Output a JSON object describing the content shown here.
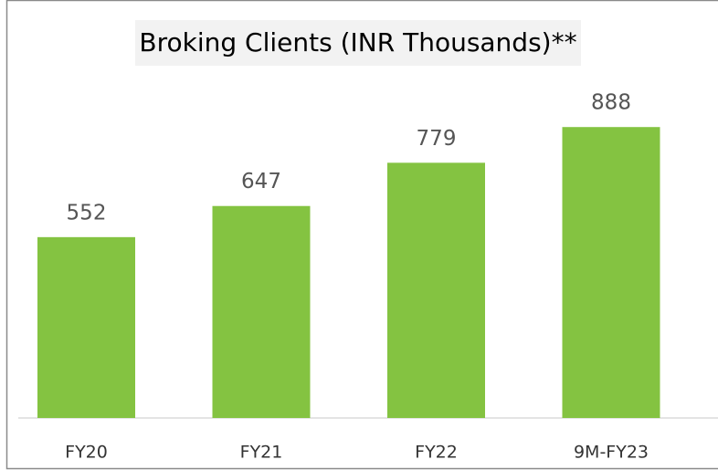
{
  "chart_data": {
    "type": "bar",
    "title": "Broking Clients (INR Thousands)**",
    "categories": [
      "FY20",
      "FY21",
      "FY22",
      "9M-FY23"
    ],
    "values": [
      552,
      647,
      779,
      888
    ],
    "color": "#84c341",
    "ylim": [
      0,
      1000
    ]
  }
}
